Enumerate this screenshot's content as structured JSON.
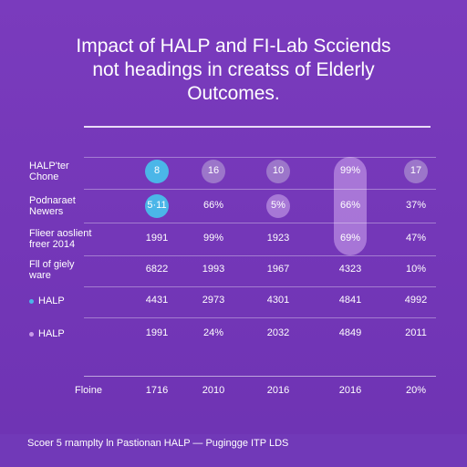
{
  "title_lines": [
    "Impact of HALP and FI-Lab Scciends",
    "not headings in creatss of Elderly",
    "Outcomes."
  ],
  "footer": "Scoer 5 rnamplty ln Pastionan HALP — Pugingge ITP LDS",
  "colors": {
    "background": "#7a3bbd",
    "accent_blue": "#4bb6e8",
    "accent_lilac": "#c79be8"
  },
  "chart_data": {
    "type": "table",
    "title": "Impact of HALP and FI-Lab Scciends not headings in creatss of Elderly Outcomes.",
    "column_labels": [
      "1716",
      "2010",
      "2016",
      "2016",
      "20%"
    ],
    "column_row_label": "Floine",
    "rows": [
      {
        "label": [
          "HALP'ter",
          "Chone"
        ],
        "dot": "",
        "cells": [
          "8",
          "16",
          "10",
          "99%",
          "17"
        ]
      },
      {
        "label": [
          "Podnaraet",
          "Newers"
        ],
        "dot": "",
        "cells": [
          "5·11",
          "66%",
          "5%",
          "66%",
          "37%"
        ]
      },
      {
        "label": [
          "Flieer aoslient",
          "freer 2014"
        ],
        "dot": "",
        "cells": [
          "1991",
          "99%",
          "1923",
          "69%",
          "47%"
        ]
      },
      {
        "label": [
          "Fll of giely",
          "ware"
        ],
        "dot": "",
        "cells": [
          "6822",
          "1993",
          "1967",
          "4323",
          "10%"
        ]
      },
      {
        "label": [
          "HALP"
        ],
        "dot": "#4bb6e8",
        "cells": [
          "4431",
          "2973",
          "4301",
          "4841",
          "4992"
        ]
      },
      {
        "label": [
          "HALP"
        ],
        "dot": "#c79be8",
        "cells": [
          "1991",
          "24%",
          "2032",
          "4849",
          "2011"
        ]
      }
    ],
    "highlights": [
      {
        "row": 0,
        "col": 0,
        "color": "#4bb6e8"
      },
      {
        "row": 1,
        "col": 0,
        "color": "#4bb6e8"
      },
      {
        "row": 0,
        "col": 1,
        "color": "#a98bd0"
      },
      {
        "row": 0,
        "col": 2,
        "color": "#a98bd0"
      },
      {
        "row": 1,
        "col": 2,
        "color": "#b88ee0"
      },
      {
        "row": 0,
        "col": 4,
        "color": "#a98bd0"
      }
    ],
    "highlight_column": 3,
    "grid": true
  }
}
